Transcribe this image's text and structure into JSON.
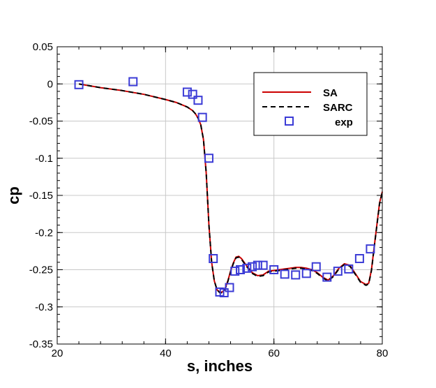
{
  "chart_data": {
    "type": "line",
    "title": "",
    "xlabel": "s, inches",
    "ylabel": "cp",
    "xlim": [
      20,
      80
    ],
    "ylim": [
      -0.35,
      0.05
    ],
    "xticks": [
      20,
      40,
      60,
      80
    ],
    "yticks": [
      0.05,
      0,
      -0.05,
      -0.1,
      -0.15,
      -0.2,
      -0.25,
      -0.3,
      -0.35
    ],
    "xtick_labels": [
      "20",
      "40",
      "60",
      "80"
    ],
    "ytick_labels": [
      "0.05",
      "0",
      "-0.05",
      "-0.1",
      "-0.15",
      "-0.2",
      "-0.25",
      "-0.3",
      "-0.35"
    ],
    "grid": true,
    "legend_position": "top-right",
    "colors": {
      "SA": "#cc0000",
      "SARC": "#000000",
      "exp": "#3b3bd6"
    },
    "series": [
      {
        "name": "SA",
        "style": "solid",
        "x": [
          24,
          28,
          32,
          36,
          40,
          42,
          44,
          45,
          45.5,
          46,
          46.5,
          47,
          47.5,
          48,
          48.5,
          49,
          49.5,
          50,
          50.5,
          51,
          51.5,
          52,
          52.5,
          53,
          53.5,
          54,
          54.5,
          55,
          56,
          57,
          58,
          59,
          60,
          61,
          62,
          63,
          64,
          65,
          66,
          67,
          68,
          69,
          70,
          71,
          72,
          73,
          74,
          75,
          76,
          77,
          77.5,
          78,
          78.5,
          79,
          79.5,
          80
        ],
        "y": [
          0,
          -0.005,
          -0.009,
          -0.014,
          -0.021,
          -0.025,
          -0.031,
          -0.036,
          -0.04,
          -0.046,
          -0.055,
          -0.075,
          -0.12,
          -0.19,
          -0.24,
          -0.265,
          -0.277,
          -0.28,
          -0.28,
          -0.275,
          -0.265,
          -0.252,
          -0.241,
          -0.233,
          -0.232,
          -0.235,
          -0.24,
          -0.245,
          -0.254,
          -0.258,
          -0.257,
          -0.252,
          -0.251,
          -0.25,
          -0.249,
          -0.248,
          -0.247,
          -0.247,
          -0.248,
          -0.25,
          -0.254,
          -0.26,
          -0.264,
          -0.258,
          -0.248,
          -0.242,
          -0.244,
          -0.255,
          -0.266,
          -0.27,
          -0.268,
          -0.25,
          -0.22,
          -0.19,
          -0.16,
          -0.145
        ]
      },
      {
        "name": "SARC",
        "style": "dashed",
        "x": [
          24,
          28,
          32,
          36,
          40,
          42,
          44,
          45,
          45.5,
          46,
          46.5,
          47,
          47.5,
          48,
          48.5,
          49,
          49.5,
          50,
          50.5,
          51,
          51.5,
          52,
          52.5,
          53,
          53.5,
          54,
          54.5,
          55,
          56,
          57,
          58,
          59,
          60,
          61,
          62,
          63,
          64,
          65,
          66,
          67,
          68,
          69,
          70,
          71,
          72,
          73,
          74,
          75,
          76,
          77,
          77.5,
          78,
          78.5,
          79,
          79.5,
          80
        ],
        "y": [
          0,
          -0.005,
          -0.009,
          -0.014,
          -0.021,
          -0.025,
          -0.031,
          -0.036,
          -0.04,
          -0.046,
          -0.055,
          -0.075,
          -0.12,
          -0.19,
          -0.24,
          -0.265,
          -0.277,
          -0.281,
          -0.281,
          -0.276,
          -0.266,
          -0.253,
          -0.242,
          -0.234,
          -0.233,
          -0.236,
          -0.241,
          -0.246,
          -0.255,
          -0.259,
          -0.258,
          -0.253,
          -0.252,
          -0.251,
          -0.25,
          -0.249,
          -0.248,
          -0.248,
          -0.249,
          -0.251,
          -0.255,
          -0.261,
          -0.265,
          -0.259,
          -0.249,
          -0.243,
          -0.245,
          -0.256,
          -0.267,
          -0.271,
          -0.269,
          -0.251,
          -0.221,
          -0.191,
          -0.161,
          -0.146
        ]
      },
      {
        "name": "exp",
        "style": "markers",
        "x": [
          24,
          34,
          44,
          45,
          46,
          46.8,
          48,
          48.8,
          50,
          50.8,
          51.8,
          52.8,
          53.8,
          55,
          56,
          57,
          58,
          60,
          62,
          64,
          66,
          67.8,
          69.8,
          71.8,
          73.8,
          75.8,
          77.8
        ],
        "y": [
          -0.001,
          0.003,
          -0.011,
          -0.014,
          -0.022,
          -0.045,
          -0.1,
          -0.235,
          -0.28,
          -0.281,
          -0.274,
          -0.252,
          -0.25,
          -0.248,
          -0.246,
          -0.244,
          -0.244,
          -0.25,
          -0.256,
          -0.257,
          -0.255,
          -0.246,
          -0.26,
          -0.252,
          -0.249,
          -0.235,
          -0.222
        ]
      }
    ]
  }
}
